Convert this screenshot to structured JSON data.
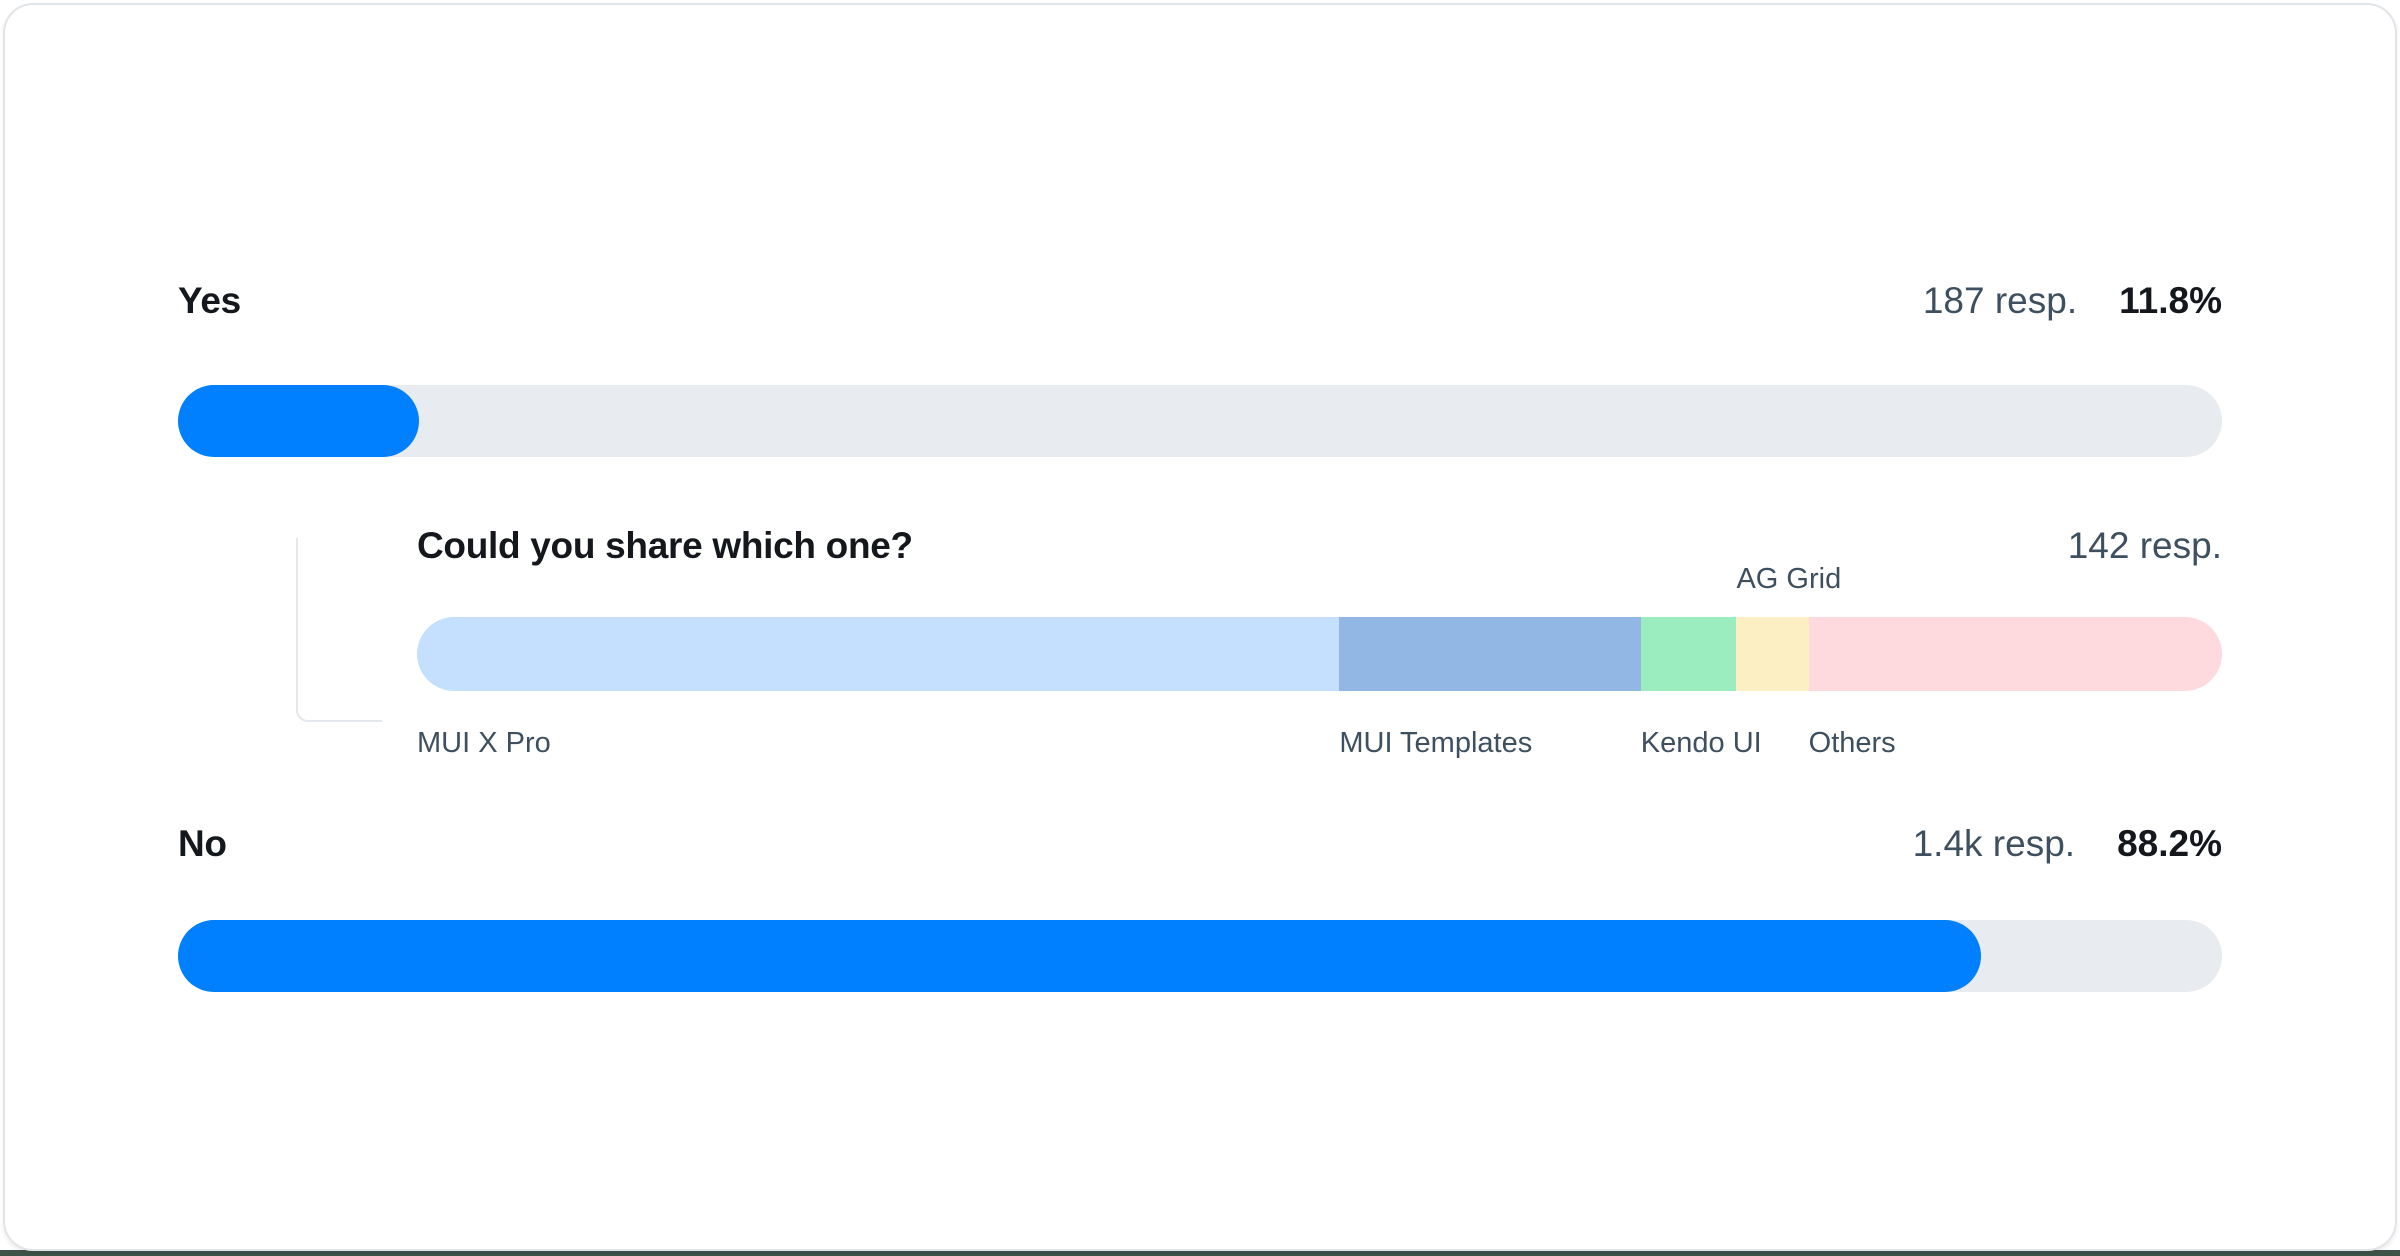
{
  "survey": {
    "yes": {
      "label": "Yes",
      "responses": "187 resp.",
      "percent_label": "11.8%",
      "percent_value": 11.8
    },
    "no": {
      "label": "No",
      "responses": "1.4k resp.",
      "percent_label": "88.2%",
      "percent_value": 88.2
    },
    "followup": {
      "question": "Could you share which one?",
      "responses": "142 resp.",
      "segments": [
        {
          "name": "MUI X Pro",
          "percent": 51.1,
          "color": "#C4E0FE",
          "label_position": "below"
        },
        {
          "name": "MUI Templates",
          "percent": 16.7,
          "color": "#92B7E4",
          "label_position": "below"
        },
        {
          "name": "Kendo UI",
          "percent": 5.3,
          "color": "#9BEDC0",
          "label_position": "below"
        },
        {
          "name": "AG Grid",
          "percent": 4.0,
          "color": "#FCEFC4",
          "label_position": "above"
        },
        {
          "name": "Others",
          "percent": 22.9,
          "color": "#FED9DE",
          "label_position": "below"
        }
      ]
    }
  },
  "colors": {
    "bar_fill": "#007FFF",
    "bar_track": "#E8EBF0",
    "text_primary": "#14181D",
    "text_secondary": "#3E5060",
    "card_border": "#E1E5E9",
    "connector_line": "#E4E7EB",
    "bottom_strip": "#3E5347",
    "segment_mui_x_pro": "#C4E0FE",
    "segment_mui_templates": "#92B7E4",
    "segment_kendo_ui": "#9BEDC0",
    "segment_ag_grid": "#FCEFC4",
    "segment_others": "#FED9DE"
  },
  "chart_data": [
    {
      "type": "bar",
      "orientation": "horizontal",
      "title": "",
      "categories": [
        "Yes",
        "No"
      ],
      "values": [
        11.8,
        88.2
      ],
      "value_labels": [
        "11.8%",
        "88.2%"
      ],
      "response_counts": [
        "187 resp.",
        "1.4k resp."
      ],
      "unit": "%",
      "xlim": [
        0,
        100
      ],
      "grid": false,
      "legend": false,
      "bar_color": "#007FFF",
      "track_color": "#E8EBF0"
    },
    {
      "type": "bar",
      "orientation": "horizontal",
      "subtype": "stacked",
      "title": "Could you share which one?",
      "response_count": "142 resp.",
      "categories": [
        "MUI X Pro",
        "MUI Templates",
        "Kendo UI",
        "AG Grid",
        "Others"
      ],
      "values": [
        51.1,
        16.7,
        5.3,
        4.0,
        22.9
      ],
      "colors": [
        "#C4E0FE",
        "#92B7E4",
        "#9BEDC0",
        "#FCEFC4",
        "#FED9DE"
      ],
      "unit": "% of bar width (estimated from segment widths)",
      "xlim": [
        0,
        100
      ],
      "grid": false,
      "legend": "inline labels (AG Grid above bar, others below bar)"
    }
  ]
}
